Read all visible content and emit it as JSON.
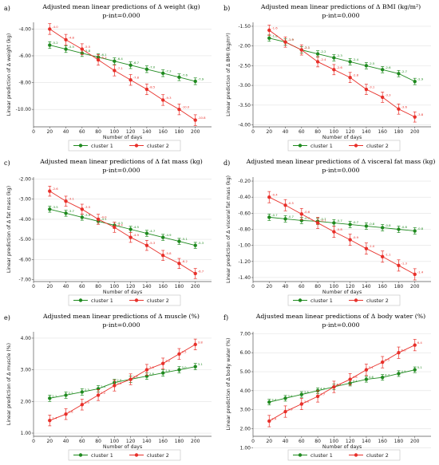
{
  "colors": {
    "cluster1": "#1f8a1f",
    "cluster2": "#e8302a",
    "grid": "#e2e2e2",
    "frame": "#bfbfbf"
  },
  "chart_data": [
    {
      "type": "line",
      "letter": "a)",
      "title": "Adjusted mean linear predictions of Δ weight (kg)",
      "subtitle": "p-int=0.000",
      "xlabel": "Number of days",
      "ylabel": "Linear prediction of Δ weight (kg)",
      "x": [
        20,
        40,
        60,
        80,
        100,
        120,
        140,
        160,
        180,
        200
      ],
      "xticks": [
        0,
        20,
        40,
        60,
        80,
        100,
        120,
        140,
        160,
        180,
        200
      ],
      "xlim": [
        0,
        220
      ],
      "yticks": [
        -4.0,
        -6.0,
        -8.0,
        -10.0
      ],
      "tick_labels": [
        "-4.00",
        "-6.00",
        "-8.00",
        "-10.00"
      ],
      "ylim": [
        -11.3,
        -3.5
      ],
      "legend": [
        "cluster 1",
        "cluster 2"
      ],
      "series": [
        {
          "name": "cluster 1",
          "values": [
            -5.2,
            -5.5,
            -5.8,
            -6.1,
            -6.4,
            -6.7,
            -7.0,
            -7.3,
            -7.6,
            -7.9
          ],
          "labels": [
            "-5.2",
            "-5.5",
            "-5.8",
            "-6.1",
            "-6.4",
            "-6.7",
            "-7.0",
            "-7.3",
            "-7.6",
            "-7.9"
          ],
          "err": 0.25
        },
        {
          "name": "cluster 2",
          "values": [
            -4.0,
            -4.8,
            -5.5,
            -6.3,
            -7.1,
            -7.8,
            -8.5,
            -9.3,
            -10.0,
            -10.8
          ],
          "labels": [
            "-4.0",
            "-4.8",
            "-5.5",
            "-6.3",
            "-7.1",
            "-7.8",
            "-8.5",
            "-9.3",
            "-10.0",
            "-10.8"
          ],
          "err": 0.4
        }
      ]
    },
    {
      "type": "line",
      "letter": "b)",
      "title": "Adjusted mean linear predictions of Δ BMI (kg/m²)",
      "subtitle": "p-int=0.000",
      "xlabel": "Number of days",
      "ylabel": "Linear prediction of Δ BMI (kg/m²)",
      "x": [
        20,
        40,
        60,
        80,
        100,
        120,
        140,
        160,
        180,
        200
      ],
      "xticks": [
        0,
        20,
        40,
        60,
        80,
        100,
        120,
        140,
        160,
        180,
        200
      ],
      "xlim": [
        0,
        220
      ],
      "yticks": [
        -1.5,
        -2.0,
        -2.5,
        -3.0,
        -3.5,
        -4.0
      ],
      "tick_labels": [
        "-1.50",
        "-2.00",
        "-2.50",
        "-3.00",
        "-3.50",
        "-4.00"
      ],
      "ylim": [
        -4.05,
        -1.4
      ],
      "legend": [
        "cluster 1",
        "cluster 2"
      ],
      "series": [
        {
          "name": "cluster 1",
          "values": [
            -1.8,
            -1.9,
            -2.1,
            -2.2,
            -2.3,
            -2.4,
            -2.5,
            -2.6,
            -2.7,
            -2.9
          ],
          "labels": [
            "-1.8",
            "-1.9",
            "-2.1",
            "-2.2",
            "-2.3",
            "-2.4",
            "-2.5",
            "-2.6",
            "-2.7",
            "-2.9"
          ],
          "err": 0.08
        },
        {
          "name": "cluster 2",
          "values": [
            -1.6,
            -1.9,
            -2.1,
            -2.4,
            -2.6,
            -2.8,
            -3.1,
            -3.3,
            -3.6,
            -3.8
          ],
          "labels": [
            "-1.6",
            "-1.9",
            "-2.1",
            "-2.4",
            "-2.6",
            "-2.8",
            "-3.1",
            "-3.3",
            "-3.6",
            "-3.8"
          ],
          "err": 0.13
        }
      ]
    },
    {
      "type": "line",
      "letter": "c)",
      "title": "Adjusted mean linear predictions of Δ fat mass (kg)",
      "subtitle": "p-int=0.000",
      "xlabel": "Number of days",
      "ylabel": "Linear prediction of Δ fat mass (kg)",
      "x": [
        20,
        40,
        60,
        80,
        100,
        120,
        140,
        160,
        180,
        200
      ],
      "xticks": [
        0,
        20,
        40,
        60,
        80,
        100,
        120,
        140,
        160,
        180,
        200
      ],
      "xlim": [
        0,
        220
      ],
      "yticks": [
        -2.0,
        -3.0,
        -4.0,
        -5.0,
        -6.0,
        -7.0
      ],
      "tick_labels": [
        "-2.00",
        "-3.00",
        "-4.00",
        "-5.00",
        "-6.00",
        "-7.00"
      ],
      "ylim": [
        -7.1,
        -1.9
      ],
      "legend": [
        "cluster 1",
        "cluster 2"
      ],
      "series": [
        {
          "name": "cluster 1",
          "values": [
            -3.5,
            -3.7,
            -3.9,
            -4.1,
            -4.3,
            -4.5,
            -4.7,
            -4.9,
            -5.1,
            -5.3
          ],
          "labels": [
            "-3.5",
            "-3.7",
            "-3.9",
            "-4.1",
            "-4.3",
            "-4.5",
            "-4.7",
            "-4.9",
            "-5.1",
            "-5.3"
          ],
          "err": 0.15
        },
        {
          "name": "cluster 2",
          "values": [
            -2.6,
            -3.1,
            -3.5,
            -4.0,
            -4.4,
            -4.9,
            -5.3,
            -5.8,
            -6.2,
            -6.7
          ],
          "labels": [
            "-2.6",
            "-3.1",
            "-3.5",
            "-4.0",
            "-4.4",
            "-4.9",
            "-5.3",
            "-5.8",
            "-6.2",
            "-6.7"
          ],
          "err": 0.25
        }
      ]
    },
    {
      "type": "line",
      "letter": "d)",
      "title": "Adjusted mean linear predictions of Δ visceral fat mass (kg)",
      "subtitle": "p-int=0.000",
      "xlabel": "Number of days",
      "ylabel": "Linear prediction of Δ visceral fat mass (kg)",
      "x": [
        20,
        40,
        60,
        80,
        100,
        120,
        140,
        160,
        180,
        200
      ],
      "xticks": [
        0,
        20,
        40,
        60,
        80,
        100,
        120,
        140,
        160,
        180,
        200
      ],
      "xlim": [
        0,
        220
      ],
      "yticks": [
        -0.2,
        -0.4,
        -0.6,
        -0.8,
        -1.0,
        -1.2,
        -1.4
      ],
      "tick_labels": [
        "-0.20",
        "-0.40",
        "-0.60",
        "-0.80",
        "-1.00",
        "-1.20",
        "-1.40"
      ],
      "ylim": [
        -1.45,
        -0.15
      ],
      "legend": [
        "cluster 1",
        "cluster 2"
      ],
      "series": [
        {
          "name": "cluster 1",
          "values": [
            -0.65,
            -0.67,
            -0.69,
            -0.7,
            -0.72,
            -0.74,
            -0.76,
            -0.78,
            -0.8,
            -0.82
          ],
          "labels": [
            "-0.7",
            "-0.7",
            "-0.7",
            "-0.7",
            "-0.7",
            "-0.7",
            "-0.8",
            "-0.8",
            "-0.8",
            "-0.8"
          ],
          "err": 0.04
        },
        {
          "name": "cluster 2",
          "values": [
            -0.4,
            -0.5,
            -0.61,
            -0.72,
            -0.83,
            -0.93,
            -1.04,
            -1.14,
            -1.25,
            -1.36
          ],
          "labels": [
            "-0.4",
            "-0.5",
            "-0.6",
            "-0.7",
            "-0.8",
            "-0.9",
            "-1.0",
            "-1.1",
            "-1.3",
            "-1.4"
          ],
          "err": 0.07
        }
      ]
    },
    {
      "type": "line",
      "letter": "e)",
      "title": "Adjusted mean linear predictions of Δ muscle (%)",
      "subtitle": "p-int=0.000",
      "xlabel": "Number of days",
      "ylabel": "Linear prediction of Δ muscle (%)",
      "x": [
        20,
        40,
        60,
        80,
        100,
        120,
        140,
        160,
        180,
        200
      ],
      "xticks": [
        0,
        20,
        40,
        60,
        80,
        100,
        120,
        140,
        160,
        180,
        200
      ],
      "xlim": [
        0,
        220
      ],
      "yticks": [
        1.0,
        2.0,
        3.0,
        4.0
      ],
      "tick_labels": [
        "1.00",
        "2.00",
        "3.00",
        "4.00"
      ],
      "ylim": [
        0.9,
        4.2
      ],
      "legend": [
        "cluster 1",
        "cluster 2"
      ],
      "series": [
        {
          "name": "cluster 1",
          "values": [
            2.1,
            2.2,
            2.3,
            2.4,
            2.6,
            2.7,
            2.8,
            2.9,
            3.0,
            3.1
          ],
          "labels": [
            "2.1",
            "2.2",
            "2.3",
            "2.4",
            "2.6",
            "2.7",
            "2.8",
            "2.9",
            "3.0",
            "3.1"
          ],
          "err": 0.1
        },
        {
          "name": "cluster 2",
          "values": [
            1.4,
            1.6,
            1.9,
            2.2,
            2.5,
            2.7,
            3.0,
            3.2,
            3.5,
            3.8
          ],
          "labels": [
            "1.4",
            "1.6",
            "1.9",
            "2.2",
            "2.5",
            "2.7",
            "3.0",
            "3.2",
            "3.5",
            "3.8"
          ],
          "err": 0.17
        }
      ]
    },
    {
      "type": "line",
      "letter": "f)",
      "title": "Adjusted mean linear predictions of Δ body water (%)",
      "subtitle": "p-int=0.000",
      "xlabel": "Number of days",
      "ylabel": "Linear prediction of Δ body water (%)",
      "x": [
        20,
        40,
        60,
        80,
        100,
        120,
        140,
        160,
        180,
        200
      ],
      "xticks": [
        0,
        20,
        40,
        60,
        80,
        100,
        120,
        140,
        160,
        180,
        200
      ],
      "xlim": [
        0,
        220
      ],
      "yticks": [
        1.0,
        2.0,
        3.0,
        4.0,
        5.0,
        6.0,
        7.0
      ],
      "tick_labels": [
        "1.00",
        "2.00",
        "3.00",
        "4.00",
        "5.00",
        "6.00",
        "7.00"
      ],
      "ylim": [
        1.6,
        7.1
      ],
      "legend": [
        "cluster 1",
        "cluster 2"
      ],
      "series": [
        {
          "name": "cluster 1",
          "values": [
            3.4,
            3.6,
            3.8,
            4.0,
            4.2,
            4.4,
            4.6,
            4.7,
            4.9,
            5.1
          ],
          "labels": [
            "3.4",
            "3.6",
            "3.8",
            "4.0",
            "4.2",
            "4.4",
            "4.6",
            "4.7",
            "4.9",
            "5.1"
          ],
          "err": 0.15
        },
        {
          "name": "cluster 2",
          "values": [
            2.4,
            2.9,
            3.3,
            3.7,
            4.2,
            4.6,
            5.1,
            5.5,
            6.0,
            6.4
          ],
          "labels": [
            "2.4",
            "2.9",
            "3.3",
            "3.7",
            "4.2",
            "4.6",
            "5.1",
            "5.5",
            "6.0",
            "6.4"
          ],
          "err": 0.3
        }
      ]
    }
  ]
}
